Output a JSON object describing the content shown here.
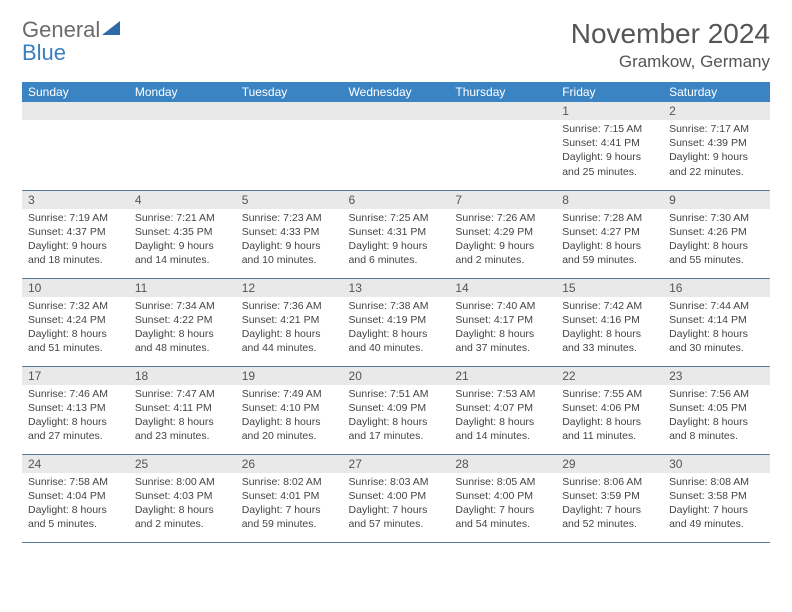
{
  "brand": {
    "general": "General",
    "blue": "Blue"
  },
  "title": "November 2024",
  "location": "Gramkow, Germany",
  "colors": {
    "header_bg": "#3b84c4",
    "header_text": "#ffffff",
    "daynum_bg": "#e9e9e9",
    "rule": "#5b7a97",
    "text": "#444444",
    "logo_gray": "#6b6b6b",
    "logo_blue": "#3a7fbf"
  },
  "dow": [
    "Sunday",
    "Monday",
    "Tuesday",
    "Wednesday",
    "Thursday",
    "Friday",
    "Saturday"
  ],
  "weeks": [
    [
      null,
      null,
      null,
      null,
      null,
      {
        "n": "1",
        "sr": "Sunrise: 7:15 AM",
        "ss": "Sunset: 4:41 PM",
        "d1": "Daylight: 9 hours",
        "d2": "and 25 minutes."
      },
      {
        "n": "2",
        "sr": "Sunrise: 7:17 AM",
        "ss": "Sunset: 4:39 PM",
        "d1": "Daylight: 9 hours",
        "d2": "and 22 minutes."
      }
    ],
    [
      {
        "n": "3",
        "sr": "Sunrise: 7:19 AM",
        "ss": "Sunset: 4:37 PM",
        "d1": "Daylight: 9 hours",
        "d2": "and 18 minutes."
      },
      {
        "n": "4",
        "sr": "Sunrise: 7:21 AM",
        "ss": "Sunset: 4:35 PM",
        "d1": "Daylight: 9 hours",
        "d2": "and 14 minutes."
      },
      {
        "n": "5",
        "sr": "Sunrise: 7:23 AM",
        "ss": "Sunset: 4:33 PM",
        "d1": "Daylight: 9 hours",
        "d2": "and 10 minutes."
      },
      {
        "n": "6",
        "sr": "Sunrise: 7:25 AM",
        "ss": "Sunset: 4:31 PM",
        "d1": "Daylight: 9 hours",
        "d2": "and 6 minutes."
      },
      {
        "n": "7",
        "sr": "Sunrise: 7:26 AM",
        "ss": "Sunset: 4:29 PM",
        "d1": "Daylight: 9 hours",
        "d2": "and 2 minutes."
      },
      {
        "n": "8",
        "sr": "Sunrise: 7:28 AM",
        "ss": "Sunset: 4:27 PM",
        "d1": "Daylight: 8 hours",
        "d2": "and 59 minutes."
      },
      {
        "n": "9",
        "sr": "Sunrise: 7:30 AM",
        "ss": "Sunset: 4:26 PM",
        "d1": "Daylight: 8 hours",
        "d2": "and 55 minutes."
      }
    ],
    [
      {
        "n": "10",
        "sr": "Sunrise: 7:32 AM",
        "ss": "Sunset: 4:24 PM",
        "d1": "Daylight: 8 hours",
        "d2": "and 51 minutes."
      },
      {
        "n": "11",
        "sr": "Sunrise: 7:34 AM",
        "ss": "Sunset: 4:22 PM",
        "d1": "Daylight: 8 hours",
        "d2": "and 48 minutes."
      },
      {
        "n": "12",
        "sr": "Sunrise: 7:36 AM",
        "ss": "Sunset: 4:21 PM",
        "d1": "Daylight: 8 hours",
        "d2": "and 44 minutes."
      },
      {
        "n": "13",
        "sr": "Sunrise: 7:38 AM",
        "ss": "Sunset: 4:19 PM",
        "d1": "Daylight: 8 hours",
        "d2": "and 40 minutes."
      },
      {
        "n": "14",
        "sr": "Sunrise: 7:40 AM",
        "ss": "Sunset: 4:17 PM",
        "d1": "Daylight: 8 hours",
        "d2": "and 37 minutes."
      },
      {
        "n": "15",
        "sr": "Sunrise: 7:42 AM",
        "ss": "Sunset: 4:16 PM",
        "d1": "Daylight: 8 hours",
        "d2": "and 33 minutes."
      },
      {
        "n": "16",
        "sr": "Sunrise: 7:44 AM",
        "ss": "Sunset: 4:14 PM",
        "d1": "Daylight: 8 hours",
        "d2": "and 30 minutes."
      }
    ],
    [
      {
        "n": "17",
        "sr": "Sunrise: 7:46 AM",
        "ss": "Sunset: 4:13 PM",
        "d1": "Daylight: 8 hours",
        "d2": "and 27 minutes."
      },
      {
        "n": "18",
        "sr": "Sunrise: 7:47 AM",
        "ss": "Sunset: 4:11 PM",
        "d1": "Daylight: 8 hours",
        "d2": "and 23 minutes."
      },
      {
        "n": "19",
        "sr": "Sunrise: 7:49 AM",
        "ss": "Sunset: 4:10 PM",
        "d1": "Daylight: 8 hours",
        "d2": "and 20 minutes."
      },
      {
        "n": "20",
        "sr": "Sunrise: 7:51 AM",
        "ss": "Sunset: 4:09 PM",
        "d1": "Daylight: 8 hours",
        "d2": "and 17 minutes."
      },
      {
        "n": "21",
        "sr": "Sunrise: 7:53 AM",
        "ss": "Sunset: 4:07 PM",
        "d1": "Daylight: 8 hours",
        "d2": "and 14 minutes."
      },
      {
        "n": "22",
        "sr": "Sunrise: 7:55 AM",
        "ss": "Sunset: 4:06 PM",
        "d1": "Daylight: 8 hours",
        "d2": "and 11 minutes."
      },
      {
        "n": "23",
        "sr": "Sunrise: 7:56 AM",
        "ss": "Sunset: 4:05 PM",
        "d1": "Daylight: 8 hours",
        "d2": "and 8 minutes."
      }
    ],
    [
      {
        "n": "24",
        "sr": "Sunrise: 7:58 AM",
        "ss": "Sunset: 4:04 PM",
        "d1": "Daylight: 8 hours",
        "d2": "and 5 minutes."
      },
      {
        "n": "25",
        "sr": "Sunrise: 8:00 AM",
        "ss": "Sunset: 4:03 PM",
        "d1": "Daylight: 8 hours",
        "d2": "and 2 minutes."
      },
      {
        "n": "26",
        "sr": "Sunrise: 8:02 AM",
        "ss": "Sunset: 4:01 PM",
        "d1": "Daylight: 7 hours",
        "d2": "and 59 minutes."
      },
      {
        "n": "27",
        "sr": "Sunrise: 8:03 AM",
        "ss": "Sunset: 4:00 PM",
        "d1": "Daylight: 7 hours",
        "d2": "and 57 minutes."
      },
      {
        "n": "28",
        "sr": "Sunrise: 8:05 AM",
        "ss": "Sunset: 4:00 PM",
        "d1": "Daylight: 7 hours",
        "d2": "and 54 minutes."
      },
      {
        "n": "29",
        "sr": "Sunrise: 8:06 AM",
        "ss": "Sunset: 3:59 PM",
        "d1": "Daylight: 7 hours",
        "d2": "and 52 minutes."
      },
      {
        "n": "30",
        "sr": "Sunrise: 8:08 AM",
        "ss": "Sunset: 3:58 PM",
        "d1": "Daylight: 7 hours",
        "d2": "and 49 minutes."
      }
    ]
  ]
}
